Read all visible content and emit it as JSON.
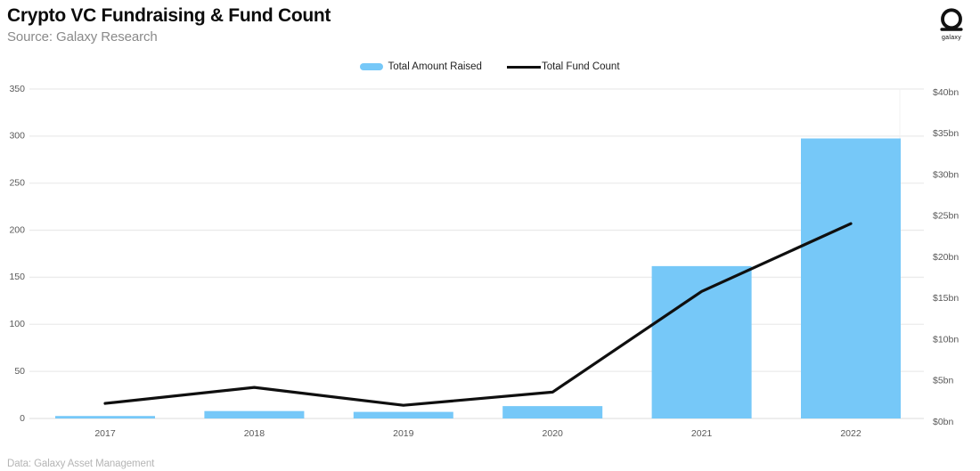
{
  "header": {
    "title": "Crypto VC Fundraising & Fund Count",
    "subtitle": "Source: Galaxy Research",
    "logo_text": "galaxy"
  },
  "legend": {
    "items": [
      {
        "label": "Total Amount Raised",
        "swatch": "bar-swatch",
        "color": "#76c8f8"
      },
      {
        "label": "Total Fund Count",
        "swatch": "line-swatch",
        "color": "#0f0f0f"
      }
    ]
  },
  "footer": {
    "note": "Data: Galaxy Asset Management"
  },
  "chart_data": {
    "type": "bar",
    "subtype": "dual-axis bar + line",
    "title": "Crypto VC Fundraising & Fund Count",
    "categories": [
      "2017",
      "2018",
      "2019",
      "2020",
      "2021",
      "2022"
    ],
    "series": [
      {
        "name": "Total Amount Raised",
        "type": "bar",
        "axis": "right",
        "unit": "$bn",
        "values": [
          0.3,
          0.9,
          0.8,
          1.5,
          18.5,
          34.0
        ]
      },
      {
        "name": "Total Fund Count",
        "type": "line",
        "axis": "left",
        "unit": "funds",
        "values": [
          16,
          33,
          14,
          28,
          135,
          207
        ]
      }
    ],
    "left_axis": {
      "ticks": [
        0,
        50,
        100,
        150,
        200,
        250,
        300,
        350
      ],
      "range": [
        0,
        350
      ]
    },
    "right_axis": {
      "tick_labels": [
        "$0bn",
        "$5bn",
        "$10bn",
        "$15bn",
        "$20bn",
        "$25bn",
        "$30bn",
        "$35bn",
        "$40bn"
      ],
      "tick_values_bn": [
        0,
        5,
        10,
        15,
        20,
        25,
        30,
        35,
        40
      ],
      "range_bn": [
        0,
        40
      ]
    },
    "grid": "horizontal",
    "legend_position": "top-center",
    "colors": {
      "bar": "#76c8f8",
      "line": "#0f0f0f",
      "grid": "#ebebeb",
      "baseline": "#e2e2e2",
      "axis_text": "#595959"
    }
  }
}
